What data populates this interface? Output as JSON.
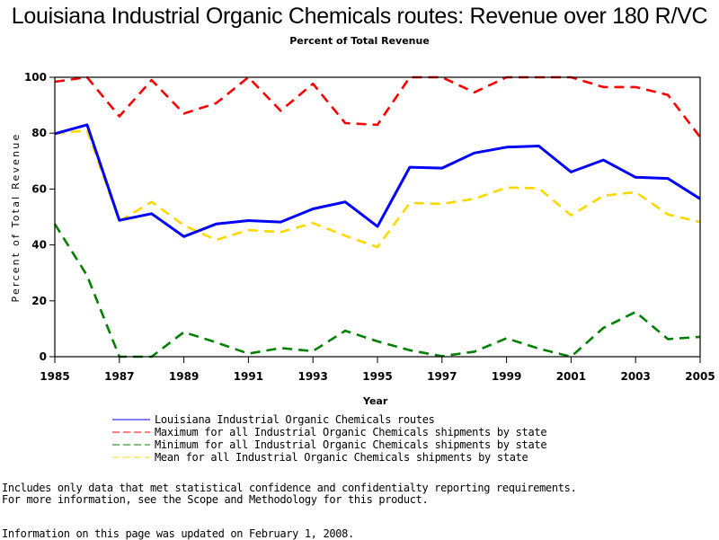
{
  "chart_data": {
    "type": "line",
    "title": "Louisiana Industrial Organic Chemicals routes: Revenue over 180 R/VC",
    "subtitle": "Percent of Total Revenue",
    "xlabel": "Year",
    "ylabel": "Percent of Total Revenue",
    "xlim": [
      1985,
      2005
    ],
    "ylim": [
      0,
      100
    ],
    "x": [
      1985,
      1986,
      1987,
      1988,
      1989,
      1990,
      1991,
      1992,
      1993,
      1994,
      1995,
      1996,
      1997,
      1998,
      1999,
      2000,
      2001,
      2002,
      2003,
      2004,
      2005
    ],
    "x_tick_labels": [
      "1985",
      "1987",
      "1989",
      "1991",
      "1993",
      "1995",
      "1997",
      "1999",
      "2001",
      "2003",
      "2005"
    ],
    "y_tick_labels": [
      "0",
      "20",
      "40",
      "60",
      "80",
      "100"
    ],
    "grid": false,
    "legend_position": "bottom",
    "series": [
      {
        "name": "Louisiana Industrial Organic Chemicals routes",
        "color": "#0000ff",
        "style": "solid",
        "values": [
          79.8,
          83,
          48.8,
          51.2,
          43,
          47.5,
          48.7,
          48.2,
          52.9,
          55.4,
          46.6,
          67.8,
          67.5,
          72.9,
          75,
          75.4,
          66.1,
          70.4,
          64.2,
          63.8,
          56.5
        ]
      },
      {
        "name": "Maximum for all Industrial Organic Chemicals shipments by state",
        "color": "#ff0000",
        "style": "dashed",
        "values": [
          98.4,
          100,
          86,
          99,
          87,
          90.7,
          100,
          88,
          97.7,
          83.6,
          83,
          100,
          100,
          94.6,
          100,
          100,
          100,
          96.5,
          96.5,
          93.7,
          78.6
        ]
      },
      {
        "name": "Minimum for all Industrial Organic Chemicals shipments by state",
        "color": "#008000",
        "style": "dashed",
        "values": [
          47.5,
          29,
          0,
          0,
          8.8,
          5.1,
          1.1,
          3.1,
          2,
          9.3,
          5.5,
          2.3,
          0.2,
          1.8,
          6.6,
          2.9,
          0,
          10.3,
          16,
          6.3,
          7.1
        ]
      },
      {
        "name": "Mean for all Industrial Organic Chemicals shipments by state",
        "color": "#ffd700",
        "style": "dashed",
        "values": [
          79.8,
          81,
          48.5,
          55.4,
          47,
          41.8,
          45.3,
          44.6,
          47.8,
          43.3,
          39.2,
          55,
          54.7,
          56.5,
          60.5,
          60.3,
          50.6,
          57.6,
          58.9,
          50.9,
          48.2
        ]
      }
    ]
  },
  "notes": {
    "line1": "Includes only data that met statistical confidence and confidentialty reporting requirements.",
    "line2": "For more information, see the Scope and Methodology for this product.",
    "updated": "Information on this page was updated on February 1, 2008."
  }
}
